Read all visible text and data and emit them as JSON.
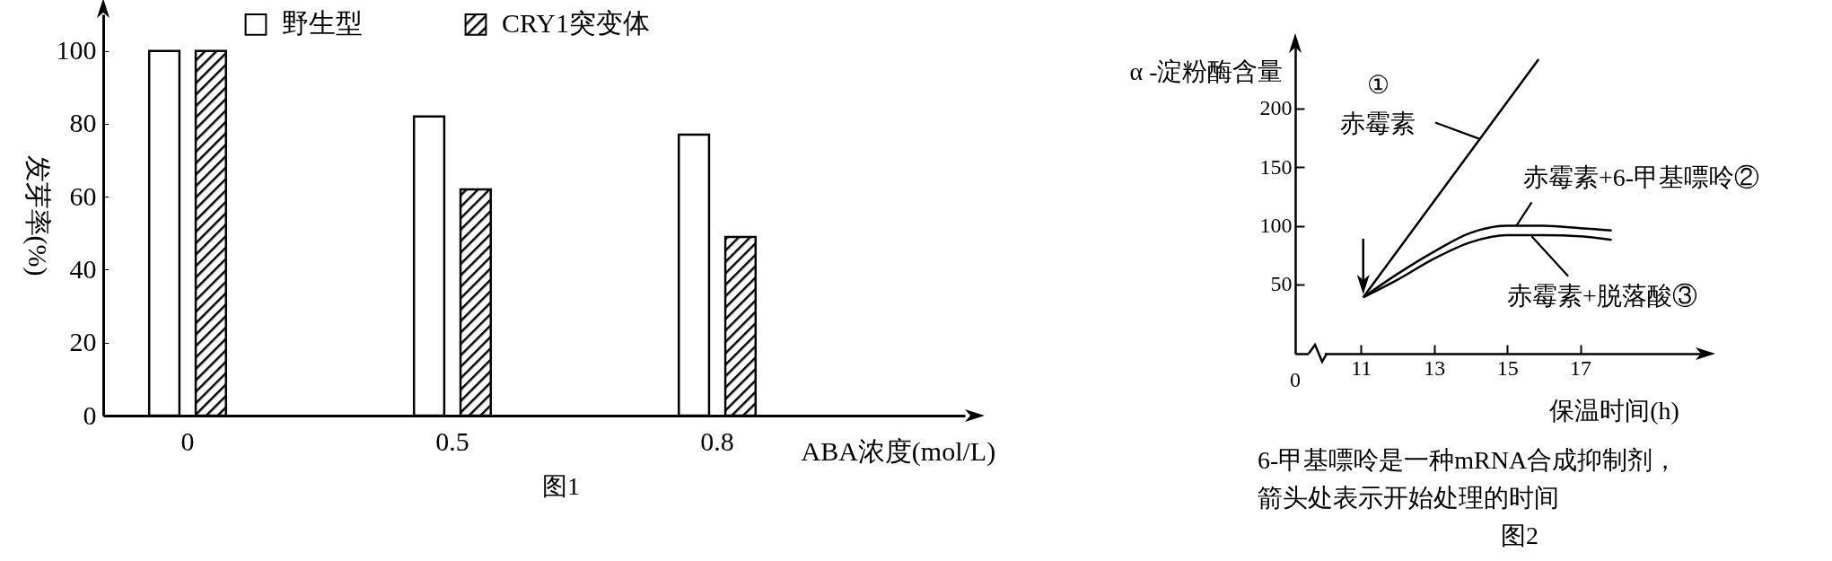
{
  "chart_data": [
    {
      "type": "bar",
      "categories": [
        "0",
        "0.5",
        "0.8"
      ],
      "series": [
        {
          "name": "野生型",
          "color": "#ffffff",
          "values": [
            100,
            82,
            77
          ]
        },
        {
          "name": "CRY1突变体",
          "color": "#000000",
          "values": [
            100,
            62,
            49
          ]
        }
      ],
      "ylim": [
        0,
        110
      ],
      "yticks": [
        0,
        20,
        40,
        60,
        80,
        100
      ],
      "xlabel": "ABA浓度(mol/L)",
      "ylabel": "发芽率(%)",
      "legend": "top",
      "annotations": [
        "图1"
      ]
    },
    {
      "type": "line",
      "series": [
        {
          "name": "赤霉素",
          "color": "#000000",
          "x": [
            11.06,
            15.86
          ],
          "values": [
            39,
            242
          ]
        },
        {
          "name": "赤霉素+6-甲基嘌呤②",
          "color": "#000000",
          "x": [
            11.06,
            12,
            13,
            14,
            15,
            16,
            17,
            17.86
          ],
          "values": [
            39,
            59,
            78,
            94,
            100,
            100,
            98,
            96
          ]
        },
        {
          "name": "赤霉素+脱落酸③",
          "color": "#000000",
          "x": [
            11.06,
            12,
            13,
            14,
            15,
            16,
            17,
            17.86
          ],
          "values": [
            39,
            54,
            72,
            86,
            92,
            92,
            91,
            88
          ]
        }
      ],
      "xlim": [
        9.2,
        20.4
      ],
      "xticks": [
        11,
        13,
        15,
        17
      ],
      "ylim": [
        -9,
        255
      ],
      "yticks": [
        50,
        100,
        150,
        200
      ],
      "xlabel": "保温时间(h)",
      "ylabel": "α -淀粉酶含量",
      "annotations": [
        "①",
        "0",
        "6-甲基嘌呤是一种mRNA合成抑制剂，",
        "箭头处表示开始处理的时间",
        "图2"
      ]
    }
  ]
}
